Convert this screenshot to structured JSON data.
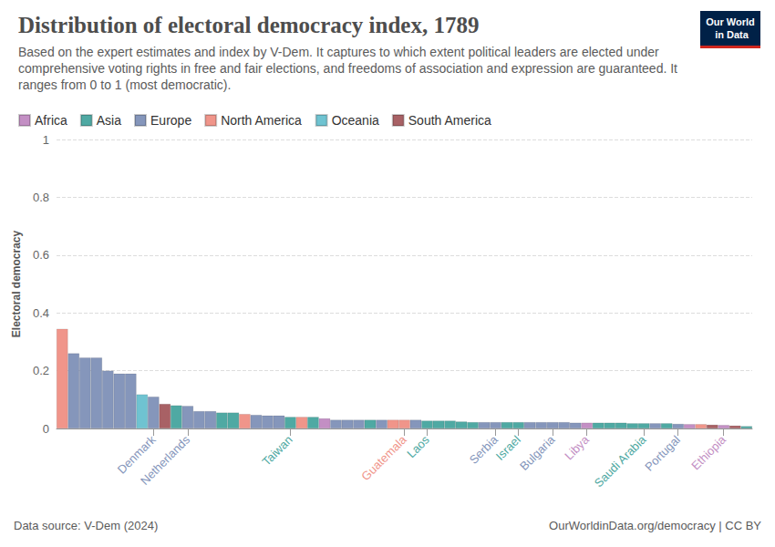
{
  "chart_data": {
    "type": "bar",
    "title": "Distribution of electoral democracy index, 1789",
    "subtitle": "Based on the expert estimates and index by V-Dem. It captures to which extent political leaders are elected under comprehensive voting rights in free and fair elections, and freedoms of association and expression are guaranteed. It ranges from 0 to 1 (most democratic).",
    "y_label": "Electoral democracy",
    "source": "Data source: V-Dem (2024)",
    "license": "OurWorldinData.org/democracy | CC BY",
    "logo": "Our World in Data",
    "categories": [
      null,
      null,
      null,
      null,
      null,
      null,
      null,
      null,
      "Denmark",
      null,
      null,
      "Netherlands",
      null,
      null,
      null,
      null,
      null,
      null,
      null,
      null,
      "Taiwan",
      null,
      null,
      null,
      null,
      null,
      null,
      null,
      null,
      null,
      "Guatemala",
      null,
      "Laos",
      null,
      null,
      null,
      null,
      null,
      "Serbia",
      null,
      "Israel",
      null,
      null,
      "Bulgaria",
      null,
      null,
      "Libya",
      null,
      null,
      null,
      null,
      "Saudi Arabia",
      null,
      null,
      "Portugal",
      null,
      null,
      null,
      "Ethiopia",
      null,
      null
    ],
    "values": [
      0.345,
      0.26,
      0.245,
      0.245,
      0.2,
      0.19,
      0.19,
      0.118,
      0.11,
      0.085,
      0.08,
      0.078,
      0.06,
      0.06,
      0.055,
      0.055,
      0.05,
      0.047,
      0.045,
      0.045,
      0.04,
      0.04,
      0.04,
      0.035,
      0.03,
      0.03,
      0.03,
      0.03,
      0.03,
      0.03,
      0.03,
      0.03,
      0.027,
      0.027,
      0.027,
      0.024,
      0.022,
      0.022,
      0.022,
      0.022,
      0.022,
      0.022,
      0.022,
      0.022,
      0.022,
      0.02,
      0.02,
      0.02,
      0.02,
      0.02,
      0.018,
      0.018,
      0.018,
      0.018,
      0.016,
      0.015,
      0.015,
      0.013,
      0.012,
      0.01,
      0.008
    ],
    "continents": [
      "North America",
      "Europe",
      "Europe",
      "Europe",
      "Europe",
      "Europe",
      "Europe",
      "Oceania",
      "Europe",
      "South America",
      "Asia",
      "Europe",
      "Europe",
      "Europe",
      "Asia",
      "Asia",
      "North America",
      "Europe",
      "Europe",
      "Europe",
      "Asia",
      "North America",
      "Asia",
      "Africa",
      "Europe",
      "Europe",
      "Europe",
      "Asia",
      "Europe",
      "North America",
      "North America",
      "Europe",
      "Asia",
      "Asia",
      "Asia",
      "Asia",
      "Asia",
      "Europe",
      "Europe",
      "Asia",
      "Asia",
      "Europe",
      "Europe",
      "Europe",
      "Europe",
      "Europe",
      "Africa",
      "Asia",
      "Asia",
      "Asia",
      "Asia",
      "Asia",
      "Europe",
      "Asia",
      "Europe",
      "Africa",
      "North America",
      "South America",
      "Africa",
      "South America",
      "Asia"
    ],
    "groups": [
      {
        "name": "Africa",
        "color": "#c38fc4"
      },
      {
        "name": "Asia",
        "color": "#4fa9a3"
      },
      {
        "name": "Europe",
        "color": "#8596bb"
      },
      {
        "name": "North America",
        "color": "#f0958a"
      },
      {
        "name": "Oceania",
        "color": "#6fc3d1"
      },
      {
        "name": "South America",
        "color": "#a86165"
      }
    ],
    "ylim": [
      0,
      1
    ],
    "yticks": [
      0,
      0.2,
      0.4,
      0.6,
      0.8,
      1
    ],
    "grid": true,
    "legend": "top-left",
    "stacked": true
  }
}
